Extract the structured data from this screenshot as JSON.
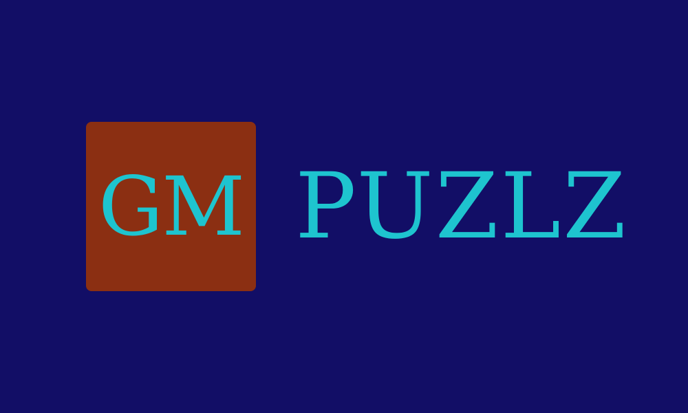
{
  "logo": {
    "mark_text": "GM",
    "wordmark_text": "PUZLZ"
  },
  "colors": {
    "background": "#120e66",
    "mark_background": "#8b2f12",
    "text": "#1ec4cf"
  }
}
